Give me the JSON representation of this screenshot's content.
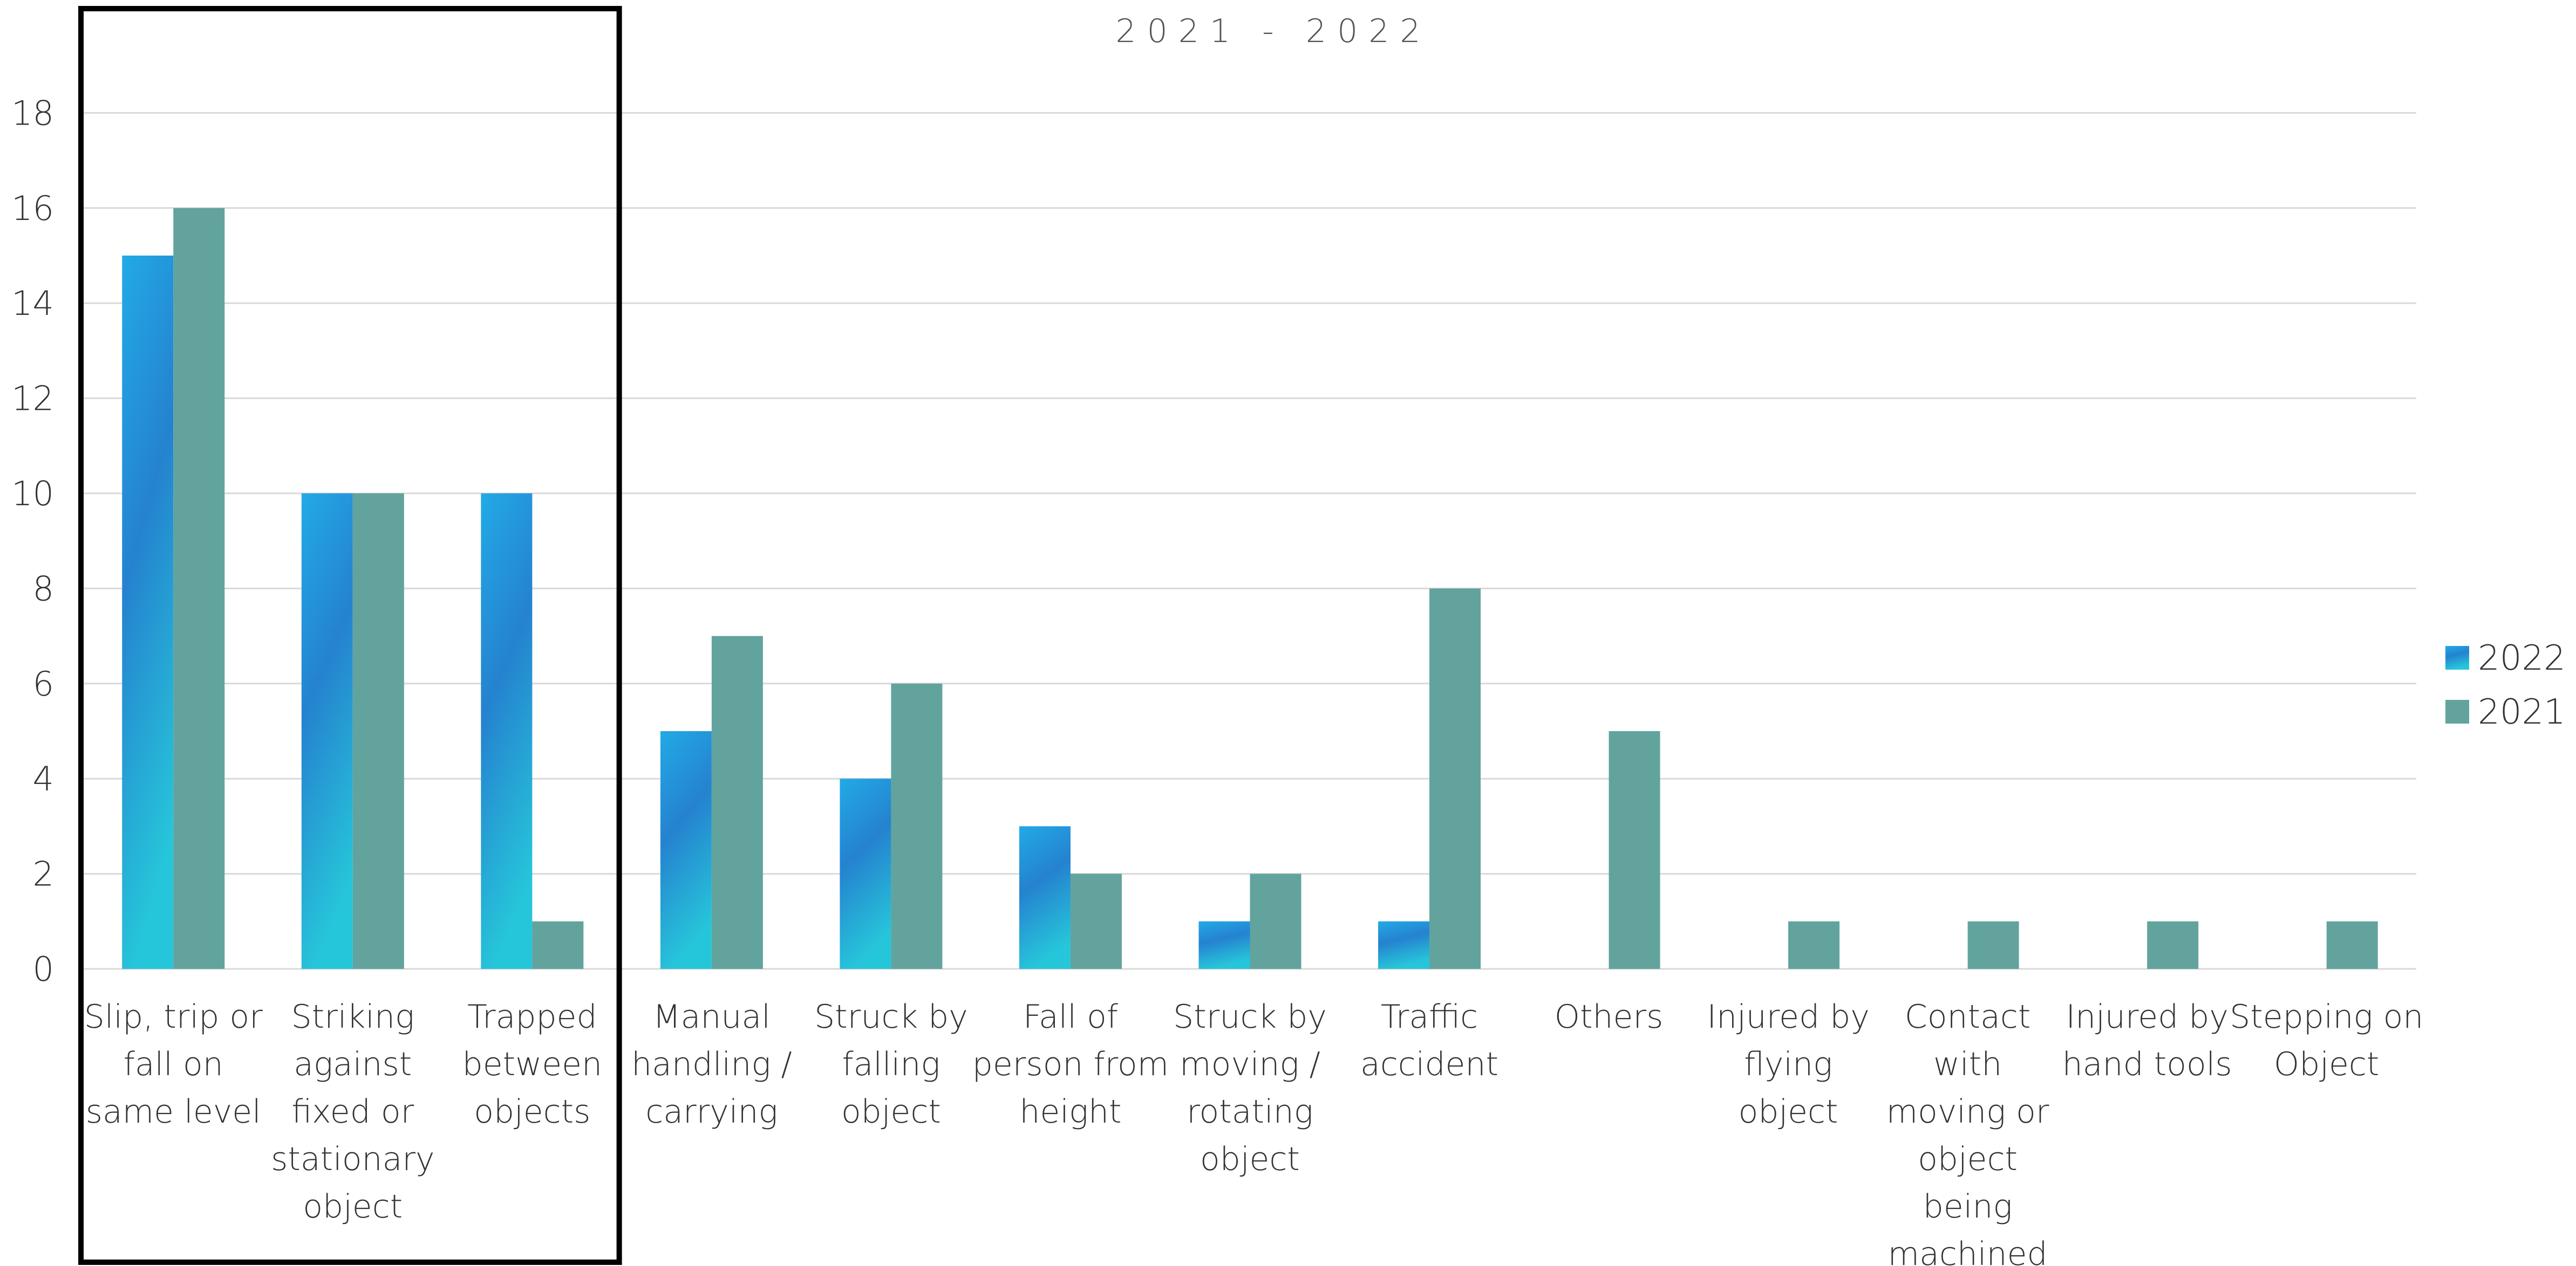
{
  "chart_data": {
    "type": "bar",
    "title": "2021 - 2022",
    "xlabel": "",
    "ylabel": "",
    "ylim": [
      0,
      20
    ],
    "y_ticks": [
      0,
      2,
      4,
      6,
      8,
      10,
      12,
      14,
      16,
      18
    ],
    "grid": true,
    "legend": {
      "position": "right"
    },
    "categories": [
      "Slip, trip or fall on same level",
      "Striking against fixed or stationary object",
      "Trapped between objects",
      "Manual handling / carrying",
      "Struck by falling object",
      "Fall of person from height",
      "Struck by moving / rotating object",
      "Traffic accident",
      "Others",
      "Injured by flying object",
      "Contact with moving or object being machined",
      "Injured by hand tools",
      "Stepping on Object"
    ],
    "category_lines": [
      [
        "Slip, trip or",
        "fall on",
        "same level"
      ],
      [
        "Striking",
        "against",
        "fixed or",
        "stationary",
        "object"
      ],
      [
        "Trapped",
        "between",
        "objects"
      ],
      [
        "Manual",
        "handling /",
        "carrying"
      ],
      [
        "Struck by",
        "falling",
        "object"
      ],
      [
        "Fall of",
        "person from",
        "height"
      ],
      [
        "Struck by",
        "moving /",
        "rotating",
        "object"
      ],
      [
        "Traffic",
        "accident"
      ],
      [
        "Others"
      ],
      [
        "Injured by",
        "flying",
        "object"
      ],
      [
        "Contact",
        "with",
        "moving or",
        "object",
        "being",
        "machined"
      ],
      [
        "Injured by",
        "hand tools"
      ],
      [
        "Stepping on",
        "Object"
      ]
    ],
    "series": [
      {
        "name": "2022",
        "color": "#2187d1",
        "values": [
          15,
          10,
          10,
          5,
          4,
          3,
          1,
          1,
          0,
          0,
          0,
          0,
          0
        ]
      },
      {
        "name": "2021",
        "color": "#62a39e",
        "values": [
          16,
          10,
          1,
          7,
          6,
          2,
          2,
          8,
          5,
          1,
          1,
          1,
          1
        ]
      }
    ],
    "highlight": {
      "from_category": 0,
      "to_category": 2
    }
  }
}
